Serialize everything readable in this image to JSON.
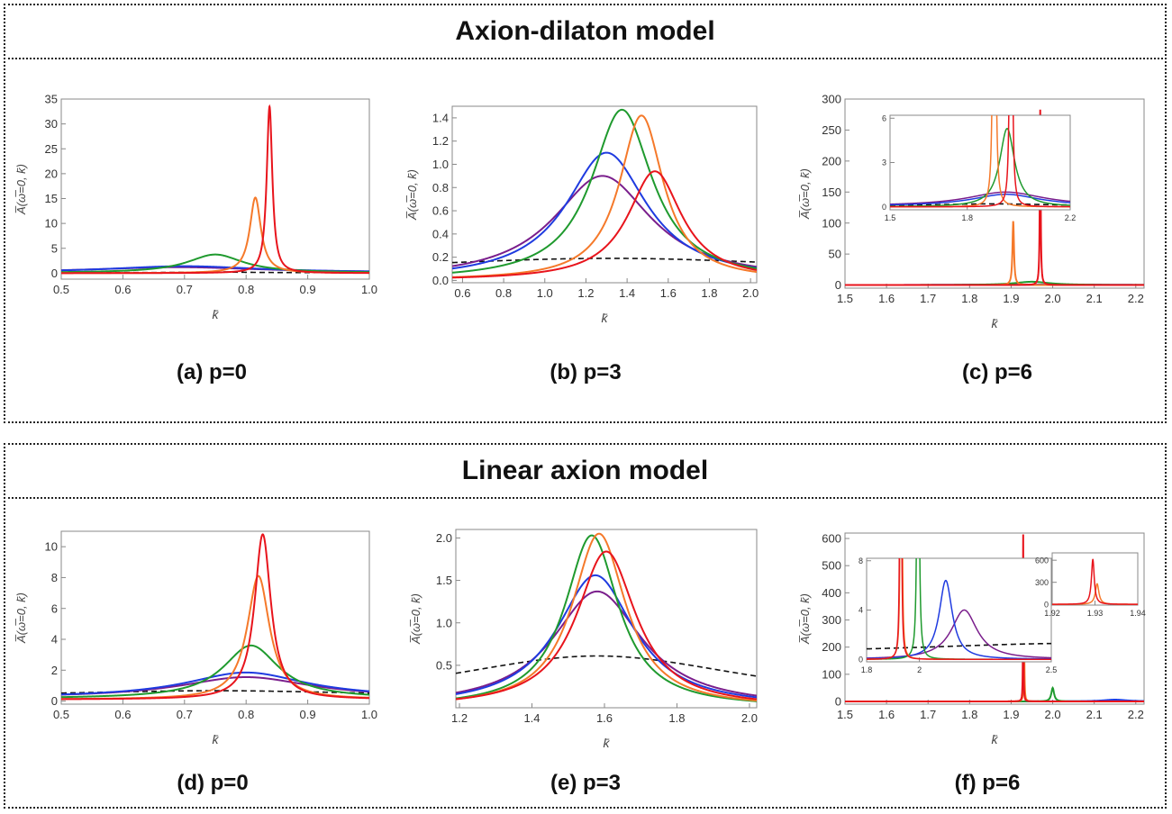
{
  "sections": [
    {
      "title": "Axion-dilaton model"
    },
    {
      "title": "Linear axion model"
    }
  ],
  "colors": {
    "red": "#e8141c",
    "orange": "#f5792a",
    "green": "#1f9a2e",
    "blue": "#1f3be0",
    "purple": "#7a1e8c",
    "dashed": "#111111"
  },
  "chart_data": [
    {
      "id": "a",
      "type": "line",
      "caption": "(a) p=0",
      "xlabel": "k̄",
      "ylabel": "A̅(ω̅=0, k̄)",
      "xlim": [
        0.5,
        1.0
      ],
      "ylim": [
        -1.2,
        35
      ],
      "xticks": [
        0.5,
        0.6,
        0.7,
        0.8,
        0.9,
        1.0
      ],
      "xtick_labels": [
        "0.5",
        "0.6",
        "0.7",
        "0.8",
        "0.9",
        "1.0"
      ],
      "yticks": [
        0,
        5,
        10,
        15,
        20,
        25,
        30,
        35
      ],
      "ytick_labels": [
        "0",
        "5",
        "10",
        "15",
        "20",
        "25",
        "30",
        "35"
      ],
      "series": [
        {
          "name": "dashed",
          "color": "dashed",
          "dashed": true,
          "baseline": 0.1,
          "peaks": [
            [
              0.75,
              0.15,
              0.05
            ]
          ]
        },
        {
          "name": "purple",
          "color": "purple",
          "baseline": 0.1,
          "peaks": [
            [
              0.69,
              1.1,
              0.17
            ]
          ]
        },
        {
          "name": "blue",
          "color": "blue",
          "baseline": 0.1,
          "peaks": [
            [
              0.7,
              1.3,
              0.15
            ]
          ]
        },
        {
          "name": "green",
          "color": "green",
          "baseline": 0.05,
          "peaks": [
            [
              0.75,
              3.7,
              0.055
            ]
          ]
        },
        {
          "name": "orange",
          "color": "orange",
          "baseline": 0,
          "peaks": [
            [
              0.815,
              15.2,
              0.011
            ]
          ]
        },
        {
          "name": "red",
          "color": "red",
          "baseline": 0,
          "peaks": [
            [
              0.838,
              33.5,
              0.0055
            ]
          ]
        }
      ]
    },
    {
      "id": "b",
      "type": "line",
      "caption": "(b) p=3",
      "xlabel": "k̄",
      "ylabel": "A̅(ω̅=0, k̄)",
      "xlim": [
        0.55,
        2.03
      ],
      "ylim": [
        -0.02,
        1.5
      ],
      "xticks": [
        0.6,
        0.8,
        1.0,
        1.2,
        1.4,
        1.6,
        1.8,
        2.0
      ],
      "xtick_labels": [
        "0.6",
        "0.8",
        "1.0",
        "1.2",
        "1.4",
        "1.6",
        "1.8",
        "2.0"
      ],
      "yticks": [
        0,
        0.2,
        0.4,
        0.6,
        0.8,
        1.0,
        1.2,
        1.4
      ],
      "ytick_labels": [
        "0.0",
        "0.2",
        "0.4",
        "0.6",
        "0.8",
        "1.0",
        "1.2",
        "1.4"
      ],
      "series": [
        {
          "name": "dashed",
          "color": "dashed",
          "dashed": true,
          "baseline": 0.05,
          "peaks": [
            [
              1.32,
              0.14,
              1.3
            ]
          ]
        },
        {
          "name": "purple",
          "color": "purple",
          "baseline": 0,
          "peaks": [
            [
              1.28,
              0.9,
              0.29
            ]
          ]
        },
        {
          "name": "blue",
          "color": "blue",
          "baseline": 0,
          "peaks": [
            [
              1.3,
              1.1,
              0.24
            ]
          ]
        },
        {
          "name": "green",
          "color": "green",
          "baseline": 0,
          "peaks": [
            [
              1.375,
              1.47,
              0.18
            ]
          ]
        },
        {
          "name": "orange",
          "color": "orange",
          "baseline": 0,
          "peaks": [
            [
              1.47,
              1.42,
              0.13
            ]
          ]
        },
        {
          "name": "red",
          "color": "red",
          "baseline": 0,
          "peaks": [
            [
              1.535,
              0.94,
              0.16
            ]
          ]
        }
      ]
    },
    {
      "id": "c",
      "type": "line",
      "caption": "(c) p=6",
      "xlabel": "k̄",
      "ylabel": "A̅(ω̅=0, k̄)",
      "xlim": [
        1.5,
        2.22
      ],
      "ylim": [
        -5,
        300
      ],
      "xticks": [
        1.5,
        1.6,
        1.7,
        1.8,
        1.9,
        2.0,
        2.1,
        2.2
      ],
      "xtick_labels": [
        "1.5",
        "1.6",
        "1.7",
        "1.8",
        "1.9",
        "2.0",
        "2.1",
        "2.2"
      ],
      "yticks": [
        0,
        50,
        100,
        150,
        200,
        250,
        300
      ],
      "ytick_labels": [
        "0",
        "50",
        "100",
        "150",
        "200",
        "250",
        "300"
      ],
      "series": [
        {
          "name": "purple",
          "color": "purple",
          "baseline": 0,
          "peaks": [
            [
              1.95,
              0.6,
              0.2
            ]
          ]
        },
        {
          "name": "blue",
          "color": "blue",
          "baseline": 0,
          "peaks": [
            [
              1.95,
              0.5,
              0.18
            ]
          ]
        },
        {
          "name": "green",
          "color": "green",
          "baseline": 0,
          "peaks": [
            [
              1.95,
              5.3,
              0.05
            ]
          ]
        },
        {
          "name": "orange",
          "color": "orange",
          "baseline": 0,
          "peaks": [
            [
              1.905,
              103,
              0.0022
            ]
          ]
        },
        {
          "name": "red",
          "color": "red",
          "baseline": 0,
          "peaks": [
            [
              1.97,
              283,
              0.0012
            ]
          ]
        }
      ],
      "insets": [
        {
          "xlim": [
            1.5,
            2.2
          ],
          "ylim": [
            -0.2,
            6.2
          ],
          "xticks": [
            1.5,
            1.8,
            2.2
          ],
          "xtick_labels": [
            "1.5",
            "1.8",
            "2.2"
          ],
          "yticks": [
            0,
            3,
            6
          ],
          "ytick_labels": [
            "0",
            "3",
            "6"
          ],
          "series": [
            {
              "name": "dashed",
              "color": "dashed",
              "dashed": true,
              "baseline": 0.05,
              "peaks": [
                [
                  1.9,
                  0.15,
                  0.3
                ]
              ]
            },
            {
              "name": "purple",
              "color": "purple",
              "baseline": 0.05,
              "peaks": [
                [
                  1.95,
                  0.95,
                  0.18
                ]
              ]
            },
            {
              "name": "blue",
              "color": "blue",
              "baseline": 0.05,
              "peaks": [
                [
                  1.95,
                  0.8,
                  0.16
                ]
              ]
            },
            {
              "name": "green",
              "color": "green",
              "baseline": 0,
              "peaks": [
                [
                  1.955,
                  5.3,
                  0.035
                ]
              ]
            },
            {
              "name": "orange",
              "color": "orange",
              "baseline": 0,
              "peaks": [
                [
                  1.905,
                  103,
                  0.0025
                ]
              ]
            },
            {
              "name": "red",
              "color": "red",
              "baseline": 0,
              "peaks": [
                [
                  1.97,
                  283,
                  0.0013
                ]
              ]
            }
          ]
        }
      ]
    },
    {
      "id": "d",
      "type": "line",
      "caption": "(d) p=0",
      "xlabel": "k̄",
      "ylabel": "A̅(ω̅=0, k̄)",
      "xlim": [
        0.5,
        1.0
      ],
      "ylim": [
        -0.2,
        11
      ],
      "xticks": [
        0.5,
        0.6,
        0.7,
        0.8,
        0.9,
        1.0
      ],
      "xtick_labels": [
        "0.5",
        "0.6",
        "0.7",
        "0.8",
        "0.9",
        "1.0"
      ],
      "yticks": [
        0,
        2,
        4,
        6,
        8,
        10
      ],
      "ytick_labels": [
        "0",
        "2",
        "4",
        "6",
        "8",
        "10"
      ],
      "series": [
        {
          "name": "dashed",
          "color": "dashed",
          "dashed": true,
          "baseline": 0.3,
          "peaks": [
            [
              0.75,
              0.37,
              0.3
            ]
          ]
        },
        {
          "name": "purple",
          "color": "purple",
          "baseline": 0.2,
          "peaks": [
            [
              0.8,
              1.35,
              0.13
            ]
          ]
        },
        {
          "name": "blue",
          "color": "blue",
          "baseline": 0.2,
          "peaks": [
            [
              0.8,
              1.65,
              0.12
            ]
          ]
        },
        {
          "name": "green",
          "color": "green",
          "baseline": 0.15,
          "peaks": [
            [
              0.808,
              3.45,
              0.055
            ]
          ]
        },
        {
          "name": "orange",
          "color": "orange",
          "baseline": 0.1,
          "peaks": [
            [
              0.82,
              8.0,
              0.022
            ]
          ]
        },
        {
          "name": "red",
          "color": "red",
          "baseline": 0.1,
          "peaks": [
            [
              0.827,
              10.7,
              0.016
            ]
          ]
        }
      ]
    },
    {
      "id": "e",
      "type": "line",
      "caption": "(e) p=3",
      "xlabel": "k̄",
      "ylabel": "A̅(ω̅=0, k̄)",
      "xlim": [
        1.19,
        2.02
      ],
      "ylim": [
        0,
        2.1
      ],
      "xticks": [
        1.2,
        1.4,
        1.6,
        1.8,
        2.0
      ],
      "xtick_labels": [
        "1.2",
        "1.4",
        "1.6",
        "1.8",
        "2.0"
      ],
      "yticks": [
        0.5,
        1.0,
        1.5,
        2.0
      ],
      "ytick_labels": [
        "0.5",
        "1.0",
        "1.5",
        "2.0"
      ],
      "series": [
        {
          "name": "dashed",
          "color": "dashed",
          "dashed": true,
          "baseline": 0,
          "peaks": [
            [
              1.58,
              0.61,
              0.55
            ]
          ]
        },
        {
          "name": "purple",
          "color": "purple",
          "baseline": 0,
          "peaks": [
            [
              1.58,
              1.37,
              0.15
            ]
          ]
        },
        {
          "name": "blue",
          "color": "blue",
          "baseline": 0,
          "peaks": [
            [
              1.575,
              1.56,
              0.13
            ]
          ]
        },
        {
          "name": "green",
          "color": "green",
          "baseline": 0,
          "peaks": [
            [
              1.565,
              2.03,
              0.09
            ]
          ]
        },
        {
          "name": "orange",
          "color": "orange",
          "baseline": 0,
          "peaks": [
            [
              1.585,
              2.05,
              0.09
            ]
          ]
        },
        {
          "name": "red",
          "color": "red",
          "baseline": 0,
          "peaks": [
            [
              1.605,
              1.84,
              0.1
            ]
          ]
        }
      ]
    },
    {
      "id": "f",
      "type": "line",
      "caption": "(f) p=6",
      "xlabel": "k̄",
      "ylabel": "A̅(ω̅=0, k̄)",
      "xlim": [
        1.5,
        2.22
      ],
      "ylim": [
        -10,
        620
      ],
      "xticks": [
        1.5,
        1.6,
        1.7,
        1.8,
        1.9,
        2.0,
        2.1,
        2.2
      ],
      "xtick_labels": [
        "1.5",
        "1.6",
        "1.7",
        "1.8",
        "1.9",
        "2.0",
        "2.1",
        "2.2"
      ],
      "yticks": [
        0,
        100,
        200,
        300,
        400,
        500,
        600
      ],
      "ytick_labels": [
        "0",
        "100",
        "200",
        "300",
        "400",
        "500",
        "600"
      ],
      "series": [
        {
          "name": "purple",
          "color": "purple",
          "baseline": 0,
          "peaks": [
            [
              2.16,
              2.5,
              0.04
            ]
          ]
        },
        {
          "name": "blue",
          "color": "blue",
          "baseline": 0,
          "peaks": [
            [
              2.15,
              6.5,
              0.035
            ]
          ]
        },
        {
          "name": "green",
          "color": "green",
          "baseline": 0,
          "peaks": [
            [
              2.0,
              50,
              0.004
            ]
          ]
        },
        {
          "name": "orange",
          "color": "orange",
          "baseline": 0,
          "peaks": [
            [
              1.931,
              310,
              0.0009
            ]
          ]
        },
        {
          "name": "red",
          "color": "red",
          "baseline": 0,
          "peaks": [
            [
              1.929,
              615,
              0.0006
            ]
          ]
        }
      ],
      "insets": [
        {
          "xlim": [
            1.8,
            2.5
          ],
          "ylim": [
            -0.2,
            8.2
          ],
          "xticks": [
            1.8,
            2.0,
            2.5
          ],
          "xtick_labels": [
            "1.8",
            "2",
            "2.5"
          ],
          "yticks": [
            0,
            4,
            8
          ],
          "ytick_labels": [
            "0",
            "4",
            "8"
          ],
          "series": [
            {
              "name": "dashed",
              "color": "dashed",
              "dashed": true,
              "baseline": 0.4,
              "peaks": [
                [
                  2.6,
                  0.9,
                  0.8
                ]
              ]
            },
            {
              "name": "purple",
              "color": "purple",
              "baseline": 0,
              "peaks": [
                [
                  2.17,
                  4.0,
                  0.06
                ]
              ]
            },
            {
              "name": "blue",
              "color": "blue",
              "baseline": 0,
              "peaks": [
                [
                  2.1,
                  6.4,
                  0.03
                ]
              ]
            },
            {
              "name": "green",
              "color": "green",
              "baseline": 0,
              "peaks": [
                [
                  1.995,
                  50,
                  0.003
                ]
              ]
            },
            {
              "name": "orange",
              "color": "orange",
              "baseline": 0,
              "peaks": [
                [
                  1.931,
                  310,
                  0.0009
                ]
              ]
            },
            {
              "name": "red",
              "color": "red",
              "baseline": 0,
              "peaks": [
                [
                  1.929,
                  615,
                  0.0006
                ]
              ]
            }
          ]
        },
        {
          "xlim": [
            1.92,
            1.94
          ],
          "ylim": [
            -10,
            700
          ],
          "xticks": [
            1.92,
            1.93,
            1.94
          ],
          "xtick_labels": [
            "1.92",
            "1.93",
            "1.94"
          ],
          "yticks": [
            0,
            300,
            600
          ],
          "ytick_labels": [
            "0",
            "300",
            "600"
          ],
          "series": [
            {
              "name": "orange",
              "color": "orange",
              "baseline": 0,
              "peaks": [
                [
                  1.9305,
                  280,
                  0.0005
                ]
              ]
            },
            {
              "name": "red",
              "color": "red",
              "baseline": 0,
              "peaks": [
                [
                  1.9295,
                  610,
                  0.0004
                ]
              ]
            }
          ]
        }
      ]
    }
  ]
}
